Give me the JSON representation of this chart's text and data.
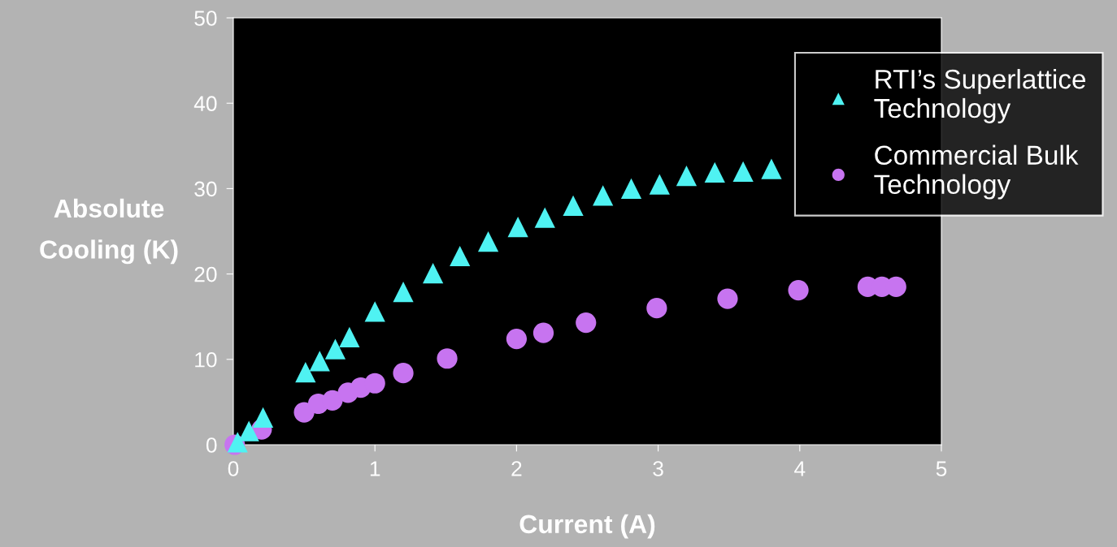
{
  "chart_data": {
    "type": "scatter",
    "xlabel": "Current (A)",
    "ylabel": "Absolute\nCooling (K)",
    "xlim": [
      0,
      5
    ],
    "xticks": [
      0,
      1,
      2,
      3,
      4,
      5
    ],
    "ylim": [
      0,
      50
    ],
    "yticks": [
      0,
      10,
      20,
      30,
      40,
      50
    ],
    "grid": false,
    "legend": "top right",
    "series": [
      {
        "name": "RTI’s Superlattice\nTechnology",
        "color": "#4ff2f2",
        "marker": "triangle",
        "x": [
          0.03,
          0.11,
          0.21,
          0.51,
          0.61,
          0.72,
          0.82,
          1.0,
          1.2,
          1.41,
          1.6,
          1.8,
          2.01,
          2.2,
          2.4,
          2.61,
          2.81,
          3.01,
          3.2,
          3.4,
          3.6,
          3.8
        ],
        "values": [
          0.3,
          1.6,
          3.2,
          8.5,
          9.8,
          11.2,
          12.6,
          15.6,
          17.9,
          20.1,
          22.1,
          23.8,
          25.5,
          26.6,
          28.0,
          29.2,
          30.0,
          30.5,
          31.5,
          31.9,
          32.0,
          32.3
        ]
      },
      {
        "name": "Commercial Bulk\nTechnology",
        "color": "#c774f0",
        "marker": "circle",
        "x": [
          0.01,
          0.2,
          0.5,
          0.6,
          0.7,
          0.81,
          0.9,
          1.0,
          1.2,
          1.51,
          2.0,
          2.19,
          2.49,
          2.99,
          3.49,
          3.99,
          4.48,
          4.58,
          4.68
        ],
        "values": [
          0.0,
          1.8,
          3.8,
          4.8,
          5.2,
          6.1,
          6.7,
          7.2,
          8.4,
          10.1,
          12.4,
          13.1,
          14.3,
          16.0,
          17.1,
          18.1,
          18.5,
          18.5,
          18.5
        ]
      }
    ]
  }
}
